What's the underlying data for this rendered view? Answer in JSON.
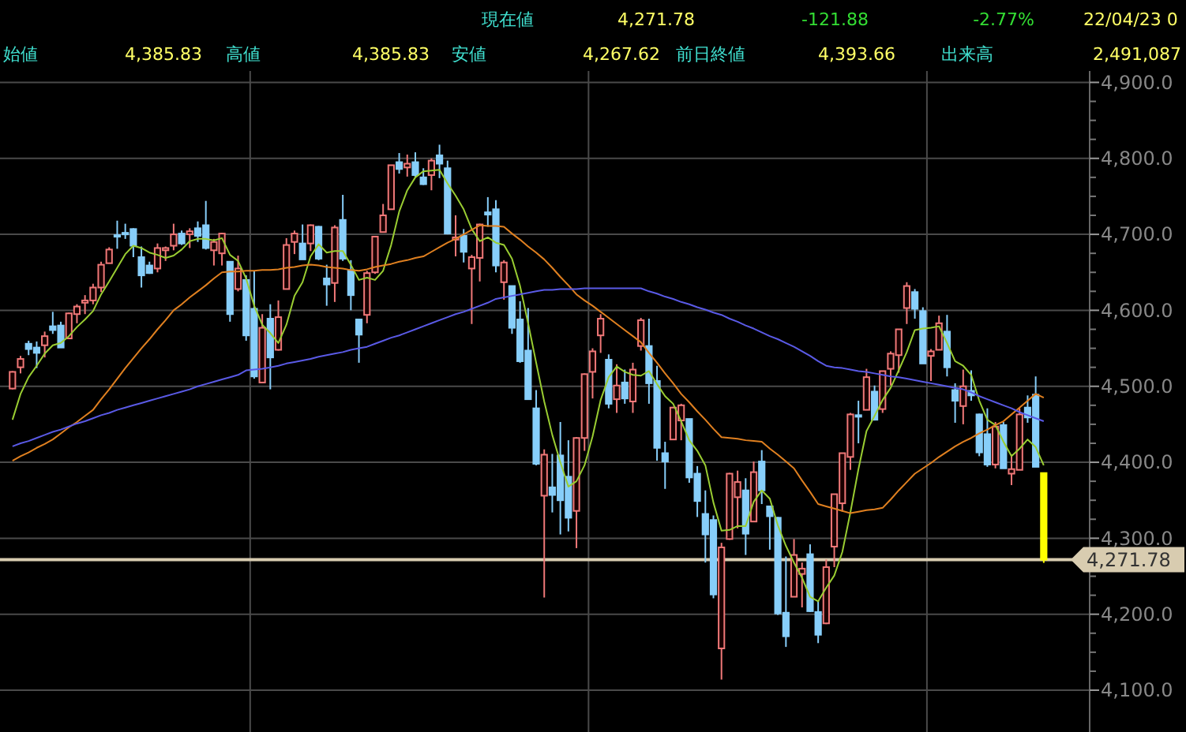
{
  "chart_data": {
    "type": "candlestick",
    "annotations": [
      "現在値",
      "4,271.78",
      "-121.88",
      "-2.77%",
      "22/04/23 0",
      "始値",
      "4,385.83",
      "高値",
      "4,385.83",
      "安値",
      "4,267.62",
      "前日終値",
      "4,393.66",
      "出来高",
      "2,491,087"
    ],
    "categories": [
      null,
      null,
      null,
      null,
      null,
      null,
      null,
      null,
      null,
      null,
      null,
      null,
      null,
      null,
      null,
      null,
      null,
      null,
      null,
      null,
      null,
      null,
      null,
      null,
      null,
      null,
      null,
      null,
      null,
      null,
      null,
      null,
      null,
      null,
      null,
      null,
      null,
      null,
      null,
      null,
      null,
      null,
      null,
      null,
      null,
      null,
      null,
      null,
      null,
      null,
      null,
      null,
      null,
      null,
      null,
      null,
      null,
      null,
      null,
      null,
      null,
      null,
      null,
      null,
      null,
      null,
      null,
      null,
      null,
      null,
      null,
      null,
      null,
      null,
      null,
      null,
      null,
      null,
      null,
      null,
      null,
      null,
      null,
      null,
      null,
      null,
      null,
      null,
      null,
      null,
      null,
      null,
      null,
      null,
      null,
      null,
      null,
      null,
      null,
      null,
      null,
      null,
      null,
      null,
      null,
      null,
      null,
      null,
      null,
      null,
      null,
      null,
      null,
      null,
      null,
      null,
      null,
      null,
      null,
      null,
      null,
      null,
      null,
      null,
      null,
      null,
      null,
      null,
      null
    ],
    "ohlc": [
      [
        4497,
        4520,
        4496,
        4519
      ],
      [
        4525,
        4540,
        4517,
        4536
      ],
      [
        4556,
        4560,
        4541,
        4549
      ],
      [
        4551,
        4559,
        4524,
        4544
      ],
      [
        4554,
        4572,
        4538,
        4566
      ],
      [
        4579,
        4598,
        4569,
        4574
      ],
      [
        4580,
        4585,
        4551,
        4551
      ],
      [
        4563,
        4597,
        4562,
        4596
      ],
      [
        4595,
        4608,
        4583,
        4605
      ],
      [
        4610,
        4620,
        4595,
        4613
      ],
      [
        4613,
        4635,
        4608,
        4630
      ],
      [
        4630,
        4664,
        4624,
        4660
      ],
      [
        4662,
        4683,
        4662,
        4680
      ],
      [
        4699,
        4718,
        4681,
        4697
      ],
      [
        4702,
        4714,
        4694,
        4701
      ],
      [
        4707,
        4708,
        4670,
        4685
      ],
      [
        4670,
        4684,
        4630,
        4646
      ],
      [
        4659,
        4664,
        4648,
        4649
      ],
      [
        4655,
        4688,
        4650,
        4682
      ],
      [
        4679,
        4684,
        4665,
        4682
      ],
      [
        4685,
        4714,
        4679,
        4700
      ],
      [
        4701,
        4705,
        4686,
        4688
      ],
      [
        4700,
        4708,
        4682,
        4704
      ],
      [
        4708,
        4717,
        4690,
        4698
      ],
      [
        4712,
        4744,
        4680,
        4682
      ],
      [
        4679,
        4694,
        4659,
        4690
      ],
      [
        4675,
        4702,
        4659,
        4701
      ],
      [
        4664,
        4664,
        4585,
        4595
      ],
      [
        4628,
        4672,
        4625,
        4655
      ],
      [
        4640,
        4646,
        4560,
        4567
      ],
      [
        4602,
        4652,
        4510,
        4513
      ],
      [
        4505,
        4595,
        4505,
        4577
      ],
      [
        4589,
        4608,
        4496,
        4538
      ],
      [
        4548,
        4613,
        4547,
        4591
      ],
      [
        4628,
        4695,
        4628,
        4686
      ],
      [
        4690,
        4705,
        4674,
        4701
      ],
      [
        4688,
        4713,
        4667,
        4667
      ],
      [
        4688,
        4713,
        4678,
        4712
      ],
      [
        4710,
        4711,
        4666,
        4668
      ],
      [
        4642,
        4660,
        4606,
        4634
      ],
      [
        4636,
        4712,
        4611,
        4709
      ],
      [
        4719,
        4752,
        4665,
        4668
      ],
      [
        4653,
        4666,
        4600,
        4620
      ],
      [
        4588,
        4588,
        4531,
        4568
      ],
      [
        4594,
        4652,
        4583,
        4649
      ],
      [
        4650,
        4698,
        4648,
        4697
      ],
      [
        4703,
        4740,
        4703,
        4725
      ],
      [
        4733,
        4791,
        4733,
        4791
      ],
      [
        4795,
        4807,
        4780,
        4786
      ],
      [
        4788,
        4805,
        4776,
        4793
      ],
      [
        4795,
        4808,
        4775,
        4778
      ],
      [
        4775,
        4787,
        4765,
        4766
      ],
      [
        4778,
        4800,
        4758,
        4797
      ],
      [
        4804,
        4818,
        4774,
        4793
      ],
      [
        4787,
        4797,
        4700,
        4701
      ],
      [
        4693,
        4725,
        4671,
        4696
      ],
      [
        4698,
        4707,
        4663,
        4677
      ],
      [
        4655,
        4673,
        4582,
        4670
      ],
      [
        4669,
        4714,
        4638,
        4713
      ],
      [
        4729,
        4749,
        4710,
        4726
      ],
      [
        4733,
        4745,
        4650,
        4659
      ],
      [
        4637,
        4666,
        4614,
        4663
      ],
      [
        4632,
        4632,
        4569,
        4577
      ],
      [
        4588,
        4612,
        4531,
        4533
      ],
      [
        4547,
        4603,
        4483,
        4483
      ],
      [
        4471,
        4495,
        4396,
        4398
      ],
      [
        4356,
        4417,
        4222,
        4410
      ],
      [
        4367,
        4411,
        4334,
        4357
      ],
      [
        4409,
        4453,
        4305,
        4350
      ],
      [
        4381,
        4429,
        4309,
        4327
      ],
      [
        4336,
        4433,
        4287,
        4432
      ],
      [
        4432,
        4517,
        4415,
        4516
      ],
      [
        4519,
        4550,
        4484,
        4546
      ],
      [
        4567,
        4595,
        4544,
        4589
      ],
      [
        4535,
        4542,
        4471,
        4477
      ],
      [
        4483,
        4529,
        4465,
        4501
      ],
      [
        4505,
        4522,
        4477,
        4484
      ],
      [
        4480,
        4531,
        4465,
        4522
      ],
      [
        4553,
        4590,
        4547,
        4587
      ],
      [
        4553,
        4589,
        4477,
        4504
      ],
      [
        4507,
        4527,
        4402,
        4419
      ],
      [
        4412,
        4427,
        4365,
        4401
      ],
      [
        4430,
        4473,
        4430,
        4472
      ],
      [
        4455,
        4477,
        4429,
        4475
      ],
      [
        4457,
        4457,
        4373,
        4380
      ],
      [
        4385,
        4395,
        4328,
        4349
      ],
      [
        4332,
        4363,
        4268,
        4305
      ],
      [
        4324,
        4330,
        4221,
        4226
      ],
      [
        4155,
        4294,
        4114,
        4288
      ],
      [
        4299,
        4386,
        4298,
        4385
      ],
      [
        4354,
        4389,
        4313,
        4374
      ],
      [
        4363,
        4379,
        4278,
        4306
      ],
      [
        4322,
        4401,
        4322,
        4387
      ],
      [
        4401,
        4416,
        4345,
        4363
      ],
      [
        4342,
        4342,
        4285,
        4329
      ],
      [
        4327,
        4328,
        4199,
        4201
      ],
      [
        4202,
        4276,
        4157,
        4171
      ],
      [
        4223,
        4299,
        4223,
        4278
      ],
      [
        4253,
        4268,
        4209,
        4260
      ],
      [
        4279,
        4292,
        4203,
        4204
      ],
      [
        4203,
        4218,
        4162,
        4173
      ],
      [
        4188,
        4272,
        4187,
        4262
      ],
      [
        4289,
        4358,
        4262,
        4358
      ],
      [
        4346,
        4412,
        4335,
        4412
      ],
      [
        4407,
        4465,
        4390,
        4463
      ],
      [
        4462,
        4481,
        4425,
        4461
      ],
      [
        4469,
        4523,
        4469,
        4512
      ],
      [
        4493,
        4501,
        4455,
        4456
      ],
      [
        4470,
        4520,
        4465,
        4520
      ],
      [
        4523,
        4546,
        4501,
        4543
      ],
      [
        4541,
        4575,
        4518,
        4575
      ],
      [
        4603,
        4637,
        4582,
        4632
      ],
      [
        4624,
        4628,
        4589,
        4602
      ],
      [
        4599,
        4604,
        4530,
        4530
      ],
      [
        4540,
        4549,
        4507,
        4546
      ],
      [
        4548,
        4593,
        4548,
        4583
      ],
      [
        4572,
        4594,
        4513,
        4525
      ],
      [
        4495,
        4504,
        4452,
        4481
      ],
      [
        4474,
        4522,
        4450,
        4500
      ],
      [
        4494,
        4521,
        4481,
        4488
      ],
      [
        4463,
        4464,
        4408,
        4413
      ],
      [
        4437,
        4471,
        4394,
        4397
      ],
      [
        4397,
        4453,
        4392,
        4447
      ],
      [
        4449,
        4453,
        4392,
        4392
      ],
      [
        4385,
        4410,
        4370,
        4391
      ],
      [
        4390,
        4471,
        4390,
        4463
      ],
      [
        4472,
        4488,
        4452,
        4459
      ],
      [
        4489,
        4513,
        4394,
        4394
      ],
      [
        4385.83,
        4385.83,
        4267.62,
        4271.78
      ]
    ],
    "colors": [
      "#f07878",
      "#f07878",
      "#87cefa",
      "#87cefa",
      "#f07878",
      "#87cefa",
      "#87cefa",
      "#f07878",
      "#f07878",
      "#f07878",
      "#f07878",
      "#f07878",
      "#f07878",
      "#87cefa",
      "#87cefa",
      "#87cefa",
      "#87cefa",
      "#87cefa",
      "#f07878",
      "#f07878",
      "#f07878",
      "#87cefa",
      "#f07878",
      "#87cefa",
      "#87cefa",
      "#f07878",
      "#f07878",
      "#87cefa",
      "#f07878",
      "#87cefa",
      "#87cefa",
      "#f07878",
      "#87cefa",
      "#f07878",
      "#f07878",
      "#f07878",
      "#87cefa",
      "#f07878",
      "#87cefa",
      "#87cefa",
      "#f07878",
      "#87cefa",
      "#87cefa",
      "#87cefa",
      "#f07878",
      "#f07878",
      "#f07878",
      "#f07878",
      "#87cefa",
      "#f07878",
      "#87cefa",
      "#87cefa",
      "#f07878",
      "#87cefa",
      "#87cefa",
      "#f07878",
      "#87cefa",
      "#f07878",
      "#f07878",
      "#87cefa",
      "#87cefa",
      "#f07878",
      "#87cefa",
      "#87cefa",
      "#87cefa",
      "#87cefa",
      "#f07878",
      "#87cefa",
      "#87cefa",
      "#87cefa",
      "#f07878",
      "#f07878",
      "#f07878",
      "#f07878",
      "#87cefa",
      "#f07878",
      "#87cefa",
      "#f07878",
      "#f07878",
      "#87cefa",
      "#87cefa",
      "#87cefa",
      "#f07878",
      "#f07878",
      "#87cefa",
      "#87cefa",
      "#87cefa",
      "#87cefa",
      "#f07878",
      "#f07878",
      "#f07878",
      "#87cefa",
      "#f07878",
      "#87cefa",
      "#87cefa",
      "#87cefa",
      "#87cefa",
      "#f07878",
      "#f07878",
      "#87cefa",
      "#87cefa",
      "#f07878",
      "#f07878",
      "#f07878",
      "#f07878",
      "#87cefa",
      "#f07878",
      "#87cefa",
      "#f07878",
      "#f07878",
      "#f07878",
      "#f07878",
      "#87cefa",
      "#87cefa",
      "#f07878",
      "#f07878",
      "#87cefa",
      "#87cefa",
      "#f07878",
      "#87cefa",
      "#87cefa",
      "#87cefa",
      "#f07878",
      "#87cefa",
      "#f07878",
      "#f07878",
      "#87cefa",
      "#87cefa",
      "#ffff00"
    ],
    "series": [
      {
        "type": "line",
        "color": "#9acd32",
        "values": [
          4456,
          4490,
          4512,
          4527,
          4543,
          4554,
          4557,
          4566,
          4578,
          4588,
          4599,
          4621,
          4638,
          4656,
          4674,
          4685,
          4682,
          4676,
          4673,
          4669,
          4672,
          4680,
          4691,
          4694,
          4694,
          4692,
          4695,
          4673,
          4665,
          4642,
          4606,
          4581,
          4570,
          4557,
          4581,
          4619,
          4637,
          4671,
          4687,
          4676,
          4678,
          4678,
          4660,
          4640,
          4643,
          4640,
          4652,
          4686,
          4730,
          4758,
          4775,
          4783,
          4784,
          4785,
          4767,
          4751,
          4733,
          4707,
          4691,
          4696,
          4689,
          4686,
          4668,
          4632,
          4583,
          4531,
          4480,
          4436,
          4400,
          4368,
          4375,
          4396,
          4434,
          4482,
          4512,
          4526,
          4519,
          4515,
          4514,
          4520,
          4503,
          4487,
          4477,
          4454,
          4429,
          4415,
          4396,
          4347,
          4310,
          4311,
          4316,
          4316,
          4348,
          4363,
          4352,
          4317,
          4290,
          4268,
          4248,
          4223,
          4217,
          4235,
          4251,
          4282,
          4334,
          4391,
          4441,
          4461,
          4482,
          4498,
          4521,
          4545,
          4574,
          4576,
          4577,
          4579,
          4557,
          4533,
          4527,
          4515,
          4481,
          4456,
          4449,
          4427,
          4408,
          4418,
          4430,
          4420,
          4396
        ]
      },
      {
        "type": "line",
        "color": "#e08020",
        "values": [
          4402,
          4408,
          4413,
          4419,
          4424,
          4430,
          4438,
          4446,
          4453,
          4461,
          4469,
          4483,
          4496,
          4510,
          4524,
          4537,
          4550,
          4562,
          4575,
          4587,
          4600,
          4608,
          4617,
          4625,
          4633,
          4642,
          4650,
          4651,
          4651,
          4652,
          4652,
          4653,
          4653,
          4654,
          4656,
          4657,
          4659,
          4660,
          4659,
          4657,
          4656,
          4655,
          4653,
          4652,
          4654,
          4657,
          4659,
          4661,
          4664,
          4666,
          4669,
          4671,
          4677,
          4683,
          4689,
          4694,
          4700,
          4706,
          4712,
          4711,
          4711,
          4710,
          4701,
          4693,
          4684,
          4676,
          4667,
          4656,
          4644,
          4633,
          4621,
          4613,
          4606,
          4598,
          4590,
          4582,
          4574,
          4566,
          4558,
          4544,
          4531,
          4517,
          4504,
          4490,
          4479,
          4467,
          4456,
          4444,
          4433,
          4432,
          4431,
          4429,
          4428,
          4427,
          4418,
          4410,
          4401,
          4392,
          4376,
          4361,
          4345,
          4342,
          4339,
          4336,
          4333,
          4335,
          4337,
          4338,
          4340,
          4351,
          4363,
          4374,
          4385,
          4392,
          4399,
          4407,
          4414,
          4421,
          4427,
          4432,
          4438,
          4443,
          4449,
          4454,
          4463,
          4472,
          4481,
          4490,
          4485
        ]
      },
      {
        "type": "line",
        "color": "#5a5ae6",
        "values": [
          4421,
          4425,
          4428,
          4432,
          4436,
          4440,
          4443,
          4447,
          4451,
          4454,
          4458,
          4462,
          4465,
          4469,
          4472,
          4475,
          4478,
          4481,
          4484,
          4487,
          4490,
          4493,
          4496,
          4500,
          4503,
          4506,
          4509,
          4512,
          4515,
          4521,
          4522,
          4523,
          4525,
          4527,
          4530,
          4532,
          4534,
          4536,
          4539,
          4541,
          4543,
          4545,
          4548,
          4550,
          4552,
          4556,
          4560,
          4564,
          4567,
          4571,
          4575,
          4579,
          4583,
          4587,
          4591,
          4595,
          4598,
          4602,
          4606,
          4610,
          4615,
          4617,
          4619,
          4621,
          4623,
          4625,
          4627,
          4627,
          4628,
          4628,
          4628,
          4629,
          4629,
          4629,
          4629,
          4629,
          4629,
          4629,
          4629,
          4625,
          4622,
          4618,
          4615,
          4611,
          4608,
          4604,
          4601,
          4597,
          4594,
          4589,
          4585,
          4580,
          4576,
          4571,
          4566,
          4562,
          4557,
          4552,
          4546,
          4540,
          4533,
          4527,
          4525,
          4524,
          4522,
          4520,
          4519,
          4517,
          4515,
          4513,
          4512,
          4510,
          4508,
          4506,
          4504,
          4502,
          4500,
          4498,
          4496,
          4492,
          4487,
          4483,
          4479,
          4475,
          4471,
          4466,
          4462,
          4458,
          4454
        ]
      }
    ],
    "ylim": [
      4045,
      4915
    ],
    "yticks": [
      {
        "value": 4100,
        "label": "4,100.0"
      },
      {
        "value": 4200,
        "label": "4,200.0"
      },
      {
        "value": 4300,
        "label": "4,300.0"
      },
      {
        "value": 4400,
        "label": "4,400.0"
      },
      {
        "value": 4500,
        "label": "4,500.0"
      },
      {
        "value": 4600,
        "label": "4,600.0"
      },
      {
        "value": 4700,
        "label": "4,700.0"
      },
      {
        "value": 4800,
        "label": "4,800.0"
      },
      {
        "value": 4900,
        "label": "4,900.0"
      }
    ],
    "grid": true,
    "tick_labels": "y",
    "ref_lines": [
      {
        "axis": "y",
        "value": 4271.78,
        "label": "4,271.78",
        "color": "#d8ccb0"
      }
    ]
  }
}
